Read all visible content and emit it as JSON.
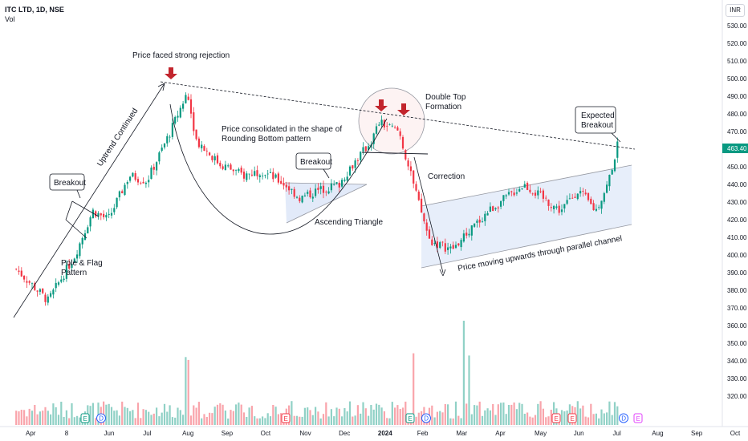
{
  "header": {
    "symbol": "ITC LTD, 1D, NSE",
    "volume_label": "Vol",
    "currency": "INR"
  },
  "price_axis": {
    "ticks": [
      "530.00",
      "520.00",
      "510.00",
      "500.00",
      "490.00",
      "480.00",
      "470.00",
      "460.00",
      "450.00",
      "440.00",
      "430.00",
      "420.00",
      "410.00",
      "400.00",
      "390.00",
      "380.00",
      "370.00",
      "360.00",
      "350.00",
      "340.00",
      "330.00",
      "320.00"
    ],
    "current_price": "463.40",
    "current_color": "#089981"
  },
  "time_axis": {
    "ticks": [
      "Apr",
      "8",
      "Jun",
      "Jul",
      "Aug",
      "Sep",
      "Oct",
      "Nov",
      "Dec",
      "2024",
      "Feb",
      "Mar",
      "Apr",
      "May",
      "Jun",
      "Jul",
      "Aug",
      "Sep",
      "Oct"
    ]
  },
  "annotations": {
    "rejection": "Price faced strong rejection",
    "uptrend": "Uptrend Continued",
    "breakout1": "Breakout",
    "pole_flag_1": "Pole & Flag",
    "pole_flag_2": "Pattern",
    "rounding_1": "Price consolidated in the shape of",
    "rounding_2": "Rounding Bottom pattern",
    "breakout2": "Breakout",
    "asc_triangle": "Ascending Triangle",
    "double_top_1": "Double Top",
    "double_top_2": "Formation",
    "correction": "Correction",
    "channel": "Price moving upwards through parallel channel",
    "expected_1": "Expected",
    "expected_2": "Breakout"
  },
  "event_markers": [
    "E",
    "D",
    "E",
    "E",
    "D",
    "E",
    "E",
    "D",
    "E"
  ],
  "colors": {
    "up": "#089981",
    "down": "#f23645",
    "arrow": "#c2252d",
    "shade": "#dfe8f8"
  },
  "chart_data": {
    "type": "candlestick",
    "series_points": [
      {
        "date": "2023-03-01",
        "close": 392
      },
      {
        "date": "2023-03-28",
        "close": 374
      },
      {
        "date": "2023-04-20",
        "close": 400
      },
      {
        "date": "2023-05-05",
        "close": 425
      },
      {
        "date": "2023-05-18",
        "close": 420
      },
      {
        "date": "2023-06-05",
        "close": 445
      },
      {
        "date": "2023-06-20",
        "close": 442
      },
      {
        "date": "2023-07-10",
        "close": 470
      },
      {
        "date": "2023-07-24",
        "close": 492
      },
      {
        "date": "2023-08-01",
        "close": 465
      },
      {
        "date": "2023-08-20",
        "close": 452
      },
      {
        "date": "2023-09-10",
        "close": 445
      },
      {
        "date": "2023-09-25",
        "close": 448
      },
      {
        "date": "2023-10-15",
        "close": 440
      },
      {
        "date": "2023-10-28",
        "close": 432
      },
      {
        "date": "2023-11-10",
        "close": 436
      },
      {
        "date": "2023-11-30",
        "close": 440
      },
      {
        "date": "2023-12-10",
        "close": 450
      },
      {
        "date": "2023-12-28",
        "close": 465
      },
      {
        "date": "2024-01-03",
        "close": 475
      },
      {
        "date": "2024-01-20",
        "close": 470
      },
      {
        "date": "2024-02-01",
        "close": 440
      },
      {
        "date": "2024-02-15",
        "close": 408
      },
      {
        "date": "2024-03-05",
        "close": 403
      },
      {
        "date": "2024-04-05",
        "close": 425
      },
      {
        "date": "2024-05-05",
        "close": 440
      },
      {
        "date": "2024-06-05",
        "close": 425
      },
      {
        "date": "2024-06-20",
        "close": 437
      },
      {
        "date": "2024-07-05",
        "close": 425
      },
      {
        "date": "2024-07-15",
        "close": 440
      },
      {
        "date": "2024-07-24",
        "close": 463.4
      }
    ],
    "volume_points": [
      {
        "date": "2023-07-24",
        "level": "high"
      },
      {
        "date": "2024-02-01",
        "level": "high"
      },
      {
        "date": "2024-03-15",
        "level": "highest"
      },
      {
        "date": "2024-03-20",
        "level": "high"
      }
    ],
    "ylim": [
      315,
      535
    ],
    "xlim": [
      "2023-02-20",
      "2024-10-15"
    ],
    "patterns": [
      "Pole & Flag",
      "Rounding Bottom",
      "Ascending Triangle",
      "Double Top",
      "Parallel Channel"
    ]
  }
}
